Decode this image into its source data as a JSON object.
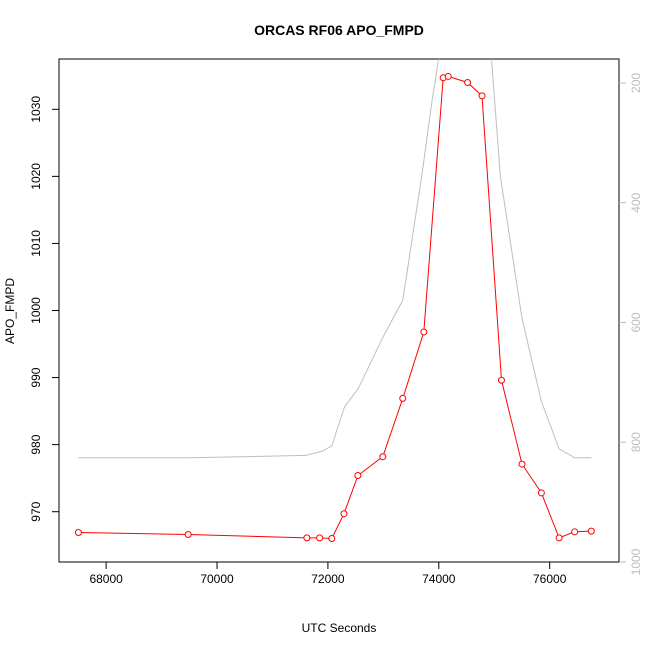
{
  "chart_data": {
    "type": "line",
    "title": "ORCAS RF06 APO_FMPD",
    "xlabel": "UTC Seconds",
    "ylabel": "APO_FMPD",
    "xlim": [
      67150,
      77250
    ],
    "ylim": [
      962.5,
      1037.5
    ],
    "y2lim": [
      1000,
      160
    ],
    "xticks": [
      68000,
      70000,
      72000,
      74000,
      76000
    ],
    "yticks": [
      970,
      980,
      990,
      1000,
      1010,
      1020,
      1030
    ],
    "y2ticks": [
      200,
      400,
      600,
      800,
      1000
    ],
    "series": [
      {
        "color": "#ff0000",
        "marker": "circle-open",
        "axis": "left",
        "points": [
          [
            67500,
            966.9
          ],
          [
            69480,
            966.6
          ],
          [
            71620,
            966.1
          ],
          [
            71850,
            966.1
          ],
          [
            72070,
            966.0
          ],
          [
            72290,
            969.7
          ],
          [
            72540,
            975.4
          ],
          [
            72990,
            978.2
          ],
          [
            73350,
            986.9
          ],
          [
            73730,
            996.8
          ],
          [
            74080,
            1034.7
          ],
          [
            74170,
            1034.9
          ],
          [
            74520,
            1034.0
          ],
          [
            74780,
            1032.0
          ],
          [
            75130,
            989.6
          ],
          [
            75500,
            977.1
          ],
          [
            75850,
            972.8
          ],
          [
            76170,
            966.1
          ],
          [
            76450,
            967.0
          ],
          [
            76750,
            967.1
          ]
        ]
      },
      {
        "color": "#bebebe",
        "marker": "none",
        "axis": "right",
        "points": [
          [
            67500,
            826
          ],
          [
            69500,
            826
          ],
          [
            71600,
            822
          ],
          [
            71900,
            815
          ],
          [
            72070,
            806
          ],
          [
            72300,
            741
          ],
          [
            72550,
            710
          ],
          [
            73000,
            623
          ],
          [
            73350,
            563
          ],
          [
            73700,
            350
          ],
          [
            73870,
            235
          ],
          [
            74000,
            158
          ],
          [
            74100,
            110
          ],
          [
            74700,
            110
          ],
          [
            74950,
            160
          ],
          [
            75110,
            355
          ],
          [
            75500,
            593
          ],
          [
            75850,
            732
          ],
          [
            76170,
            811
          ],
          [
            76450,
            826
          ],
          [
            76750,
            826
          ]
        ]
      }
    ],
    "grid": false,
    "legend": "none"
  }
}
